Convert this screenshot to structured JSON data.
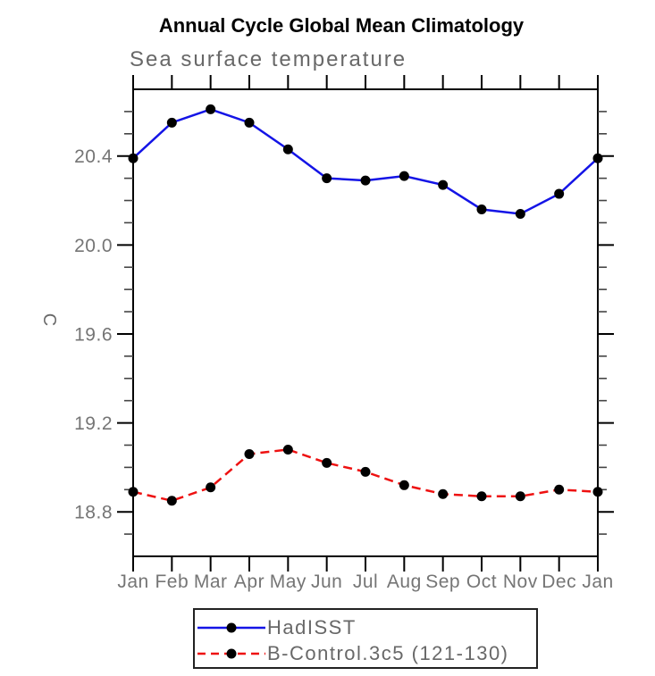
{
  "chart_data": {
    "type": "line",
    "title": "Annual Cycle Global Mean Climatology",
    "subtitle": "Sea surface temperature",
    "ylabel": "C",
    "xlabel": "",
    "categories": [
      "Jan",
      "Feb",
      "Mar",
      "Apr",
      "May",
      "Jun",
      "Jul",
      "Aug",
      "Sep",
      "Oct",
      "Nov",
      "Dec",
      "Jan"
    ],
    "ylim": [
      18.6,
      20.7
    ],
    "yticks": [
      18.8,
      19.2,
      19.6,
      20.0,
      20.4
    ],
    "ytick_labels": [
      "18.8",
      "19.2",
      "19.6",
      "20.0",
      "20.4"
    ],
    "minor_tick_step": 0.1,
    "grid": false,
    "legend_position": "bottom",
    "colors": {
      "axis": "#000000",
      "minor_tick": "#444444",
      "label": "#757575",
      "series_blue": "#1414e6",
      "series_red": "#ee1111",
      "marker": "#000000"
    },
    "series": [
      {
        "name": "HadISST",
        "style": "solid",
        "color": "#1414e6",
        "marker": "circle",
        "marker_color": "#000000",
        "values": [
          20.39,
          20.55,
          20.61,
          20.55,
          20.43,
          20.3,
          20.29,
          20.31,
          20.27,
          20.16,
          20.14,
          20.23,
          20.39
        ]
      },
      {
        "name": "B-Control.3c5 (121-130)",
        "style": "dashed",
        "color": "#ee1111",
        "marker": "circle",
        "marker_color": "#000000",
        "values": [
          18.89,
          18.85,
          18.91,
          19.06,
          19.08,
          19.02,
          18.98,
          18.92,
          18.88,
          18.87,
          18.87,
          18.9,
          18.89
        ]
      }
    ]
  }
}
